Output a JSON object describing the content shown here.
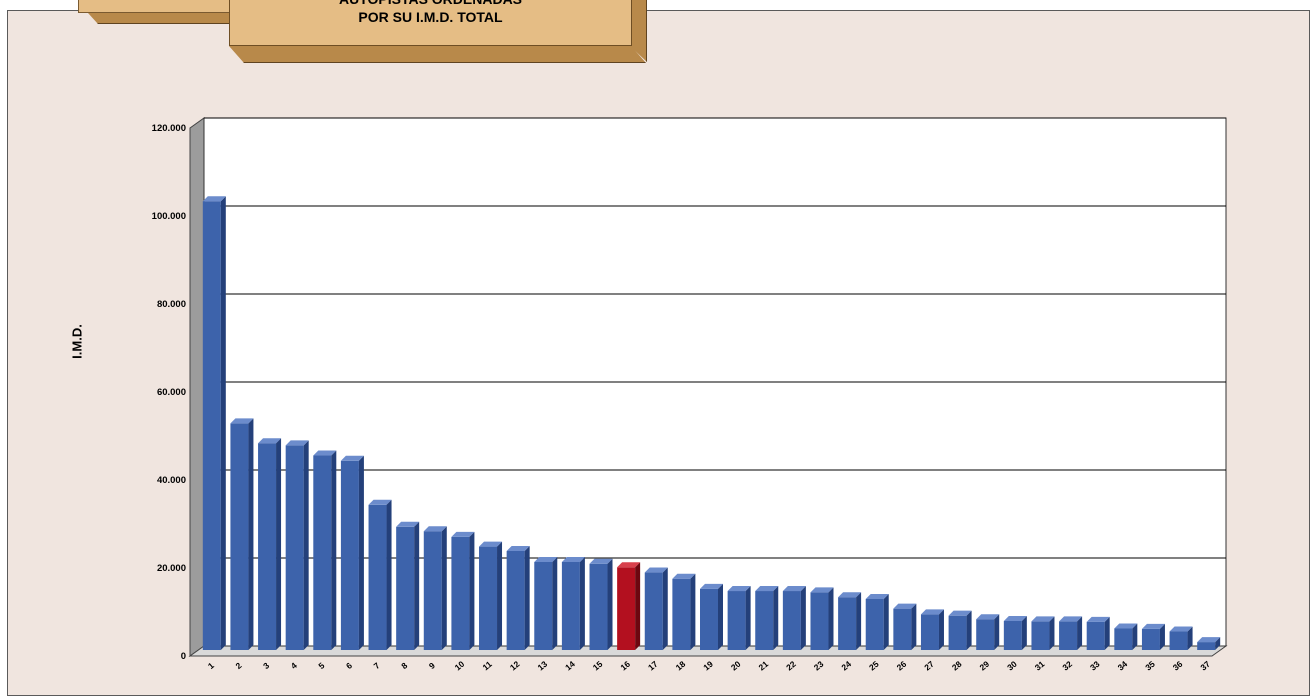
{
  "title": {
    "line1": "AUTOPISTAS ORDENADAS",
    "line2": "POR SU I.M.D. TOTAL"
  },
  "chart_data": {
    "type": "bar",
    "title": "AUTOPISTAS ORDENADAS POR SU I.M.D. TOTAL",
    "xlabel": "",
    "ylabel": "I.M.D.",
    "ylim": [
      0,
      120000
    ],
    "yticks": [
      "0",
      "20.000",
      "40.000",
      "60.000",
      "80.000",
      "100.000",
      "120.000"
    ],
    "ytick_values": [
      0,
      20000,
      40000,
      60000,
      80000,
      100000,
      120000
    ],
    "grid": true,
    "style": "3d",
    "bar_color": "#3d63ab",
    "highlight_color": "#b3101f",
    "highlight_category": "16",
    "categories": [
      "1",
      "2",
      "3",
      "4",
      "5",
      "6",
      "7",
      "8",
      "9",
      "10",
      "11",
      "12",
      "13",
      "14",
      "15",
      "16",
      "17",
      "18",
      "19",
      "20",
      "21",
      "22",
      "23",
      "24",
      "25",
      "26",
      "27",
      "28",
      "29",
      "30",
      "31",
      "32",
      "33",
      "34",
      "35",
      "36",
      "37"
    ],
    "values": [
      102000,
      51500,
      47000,
      46500,
      44200,
      43000,
      33000,
      28000,
      27000,
      25700,
      23500,
      22500,
      20000,
      20000,
      19600,
      18800,
      17600,
      16200,
      13900,
      13400,
      13400,
      13400,
      13100,
      12000,
      11600,
      9400,
      8100,
      7800,
      7000,
      6600,
      6500,
      6500,
      6400,
      4900,
      4800,
      4200,
      1800
    ]
  }
}
